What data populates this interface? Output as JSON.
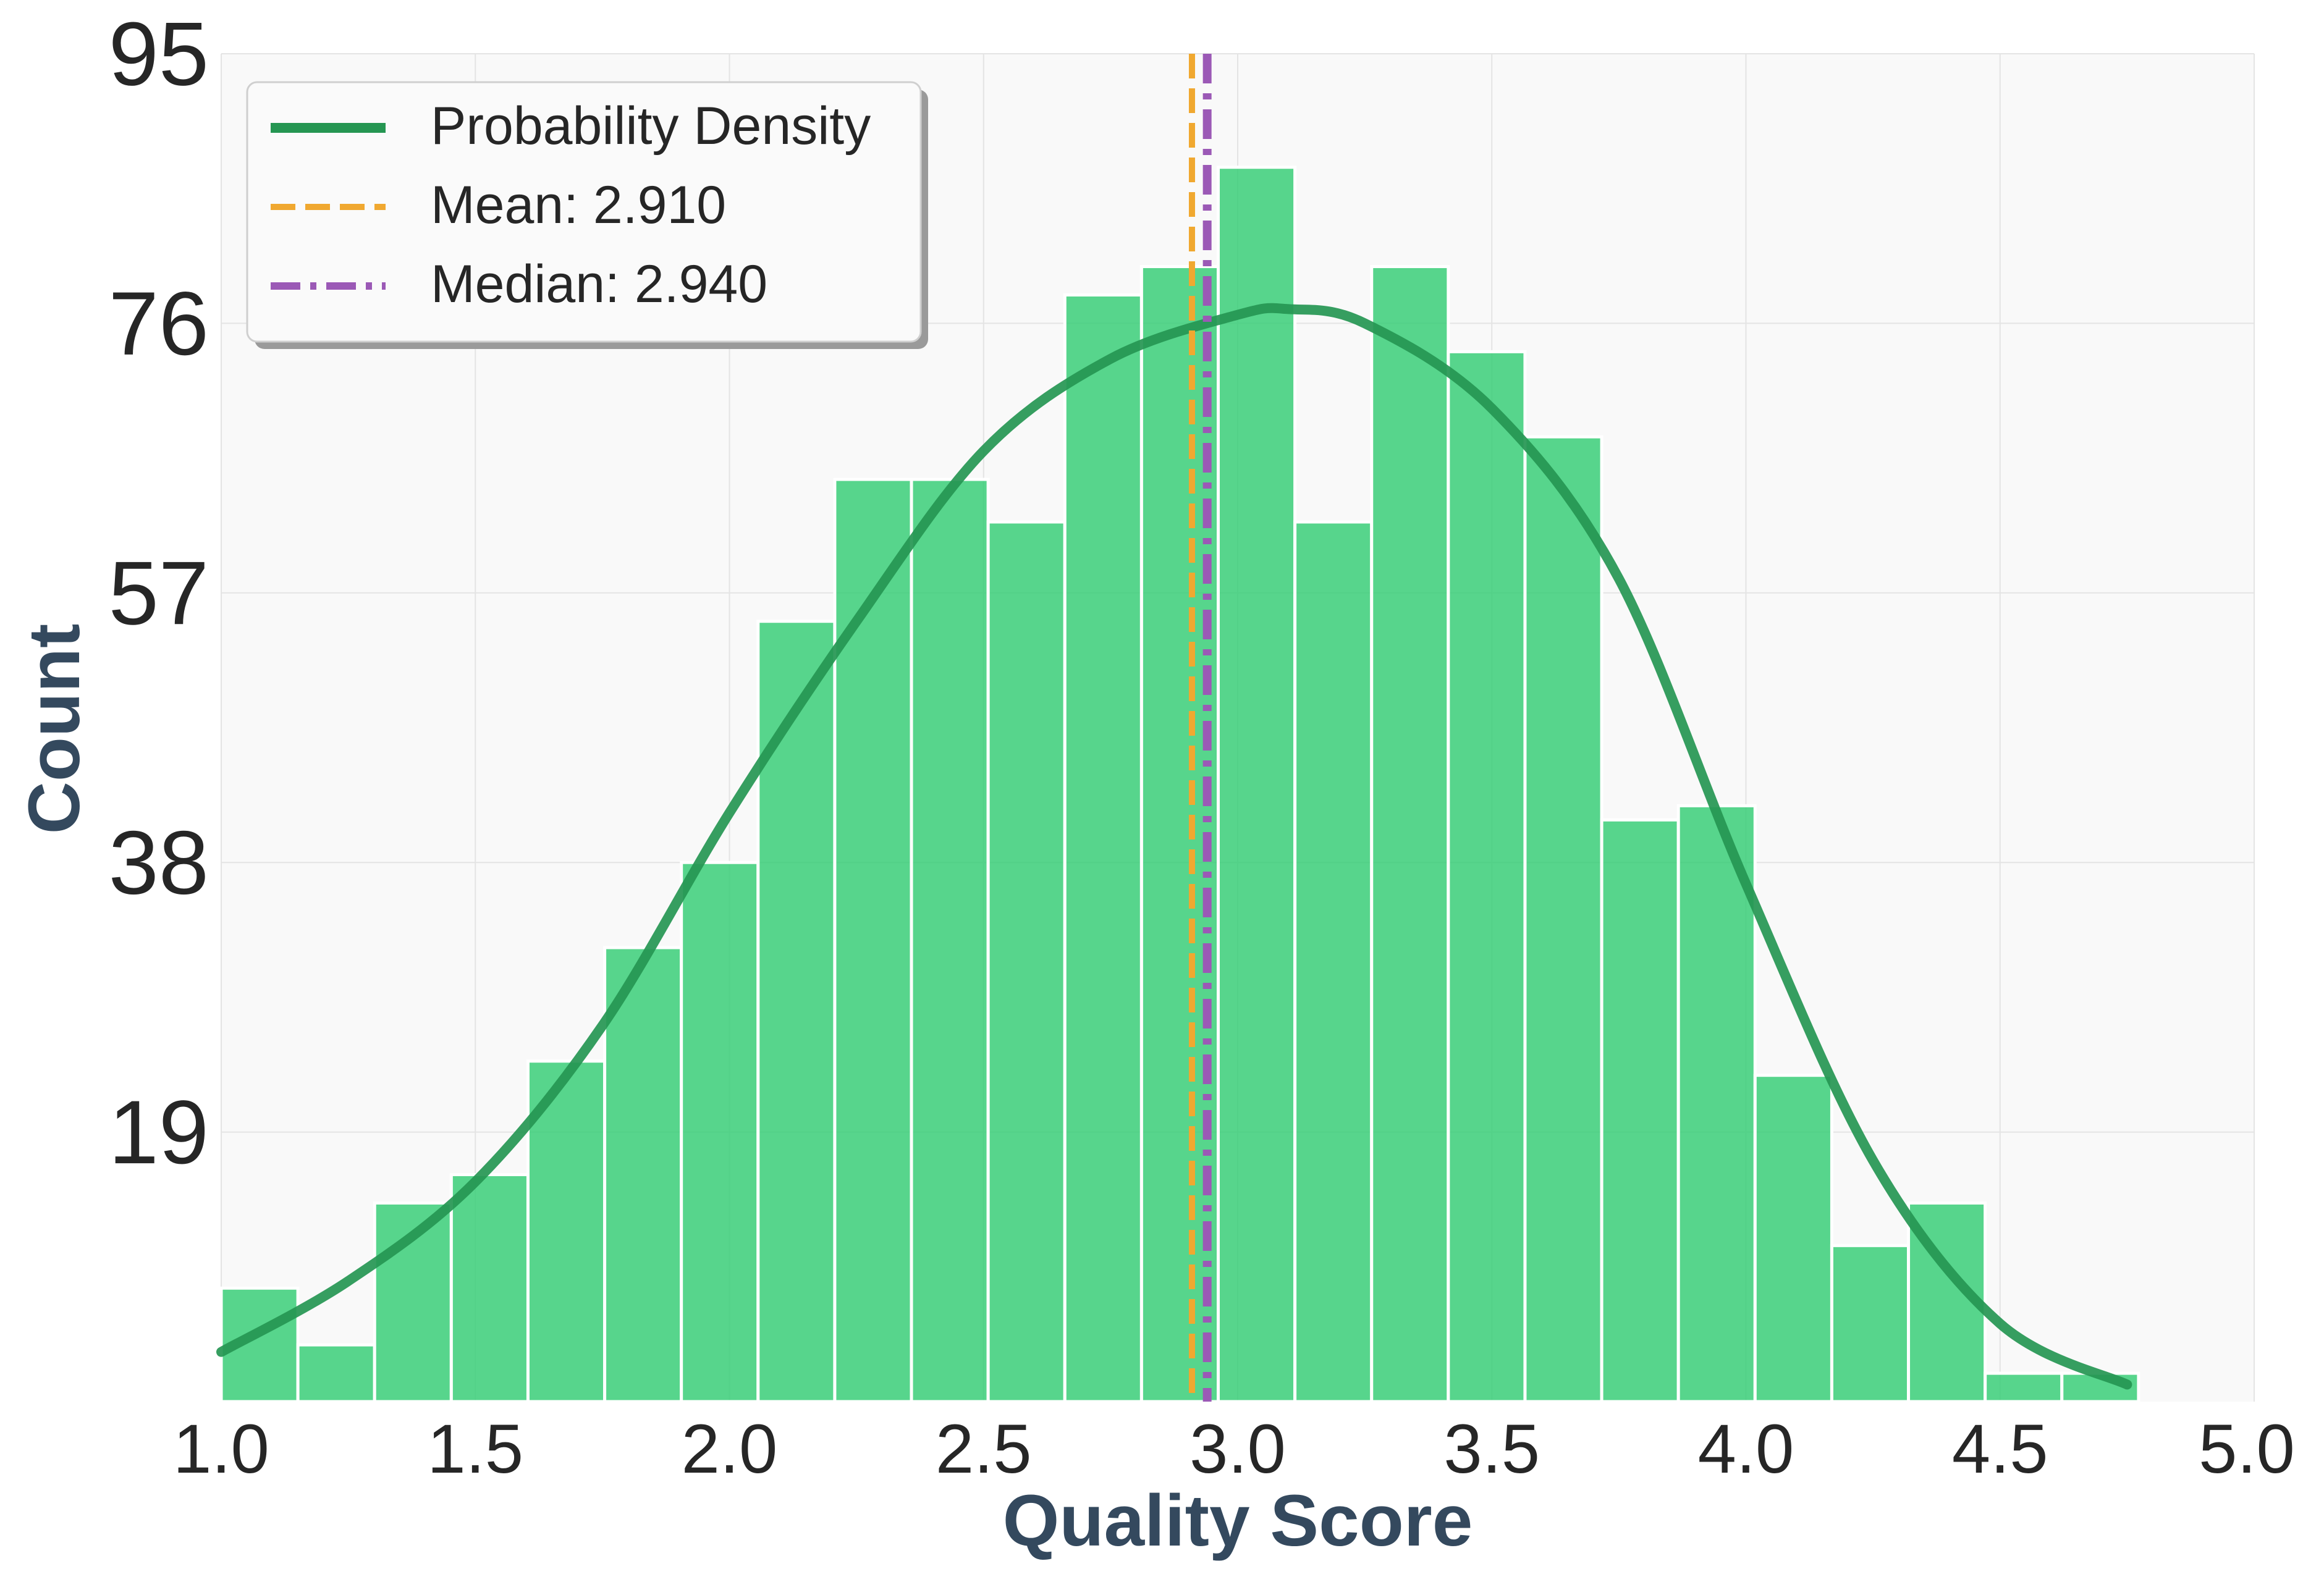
{
  "chart_data": {
    "type": "bar",
    "title": "",
    "xlabel": "Quality Score",
    "ylabel": "Count",
    "xlim": [
      1.0,
      5.0
    ],
    "ylim": [
      0,
      95
    ],
    "x_ticks": [
      "1.0",
      "1.5",
      "2.0",
      "2.5",
      "3.0",
      "3.5",
      "4.0",
      "4.5",
      "5.0"
    ],
    "y_ticks": [
      "19",
      "38",
      "57",
      "76",
      "95"
    ],
    "grid": true,
    "legend_position": "top-left",
    "bins": {
      "start": 1.0,
      "width": 0.1509,
      "counts": [
        8,
        4,
        14,
        16,
        24,
        32,
        38,
        55,
        65,
        65,
        62,
        78,
        80,
        87,
        62,
        80,
        74,
        68,
        41,
        42,
        23,
        11,
        14,
        2,
        2
      ]
    },
    "density_curve": {
      "name": "Probability Density",
      "x": [
        1.0,
        1.25,
        1.5,
        1.75,
        2.0,
        2.25,
        2.5,
        2.75,
        3.0,
        3.1,
        3.25,
        3.5,
        3.75,
        4.0,
        4.25,
        4.5,
        4.75
      ],
      "y": [
        3.5,
        8.5,
        15.5,
        26.5,
        41.5,
        55.0,
        67.0,
        73.5,
        76.6,
        77.0,
        76.0,
        70.0,
        58.0,
        36.5,
        17.0,
        5.5,
        1.2
      ]
    },
    "reference_lines": [
      {
        "name": "Mean: 2.910",
        "value": 2.91,
        "style": "dashed",
        "color": "#f0a830"
      },
      {
        "name": "Median: 2.940",
        "value": 2.94,
        "style": "dashdot",
        "color": "#9b59b6"
      }
    ],
    "colors": {
      "bars": "#2ecc71",
      "bar_edge": "#ffffff",
      "density": "#259652",
      "plot_bg": "#f9f9f9",
      "grid": "#e4e4e4",
      "axis_label": "#34495e"
    }
  }
}
